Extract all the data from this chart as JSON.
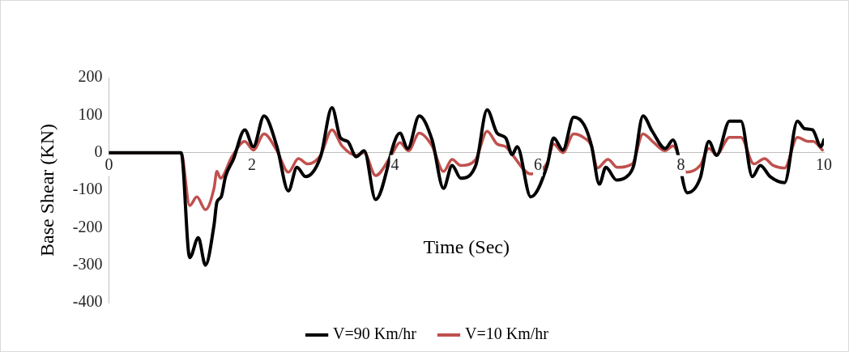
{
  "chart_data": {
    "type": "line",
    "xlabel": "Time (Sec)",
    "ylabel": "Base Shear (KN)",
    "xlim": [
      0,
      10
    ],
    "xticks": [
      0,
      2,
      4,
      6,
      8,
      10
    ],
    "ylim": [
      -400,
      200
    ],
    "yticks": [
      -400,
      -300,
      -200,
      -100,
      0,
      100,
      200
    ],
    "grid": false,
    "legend": "bottom",
    "marker": "none",
    "line_style": "solid",
    "series": [
      {
        "name": "V=90 Km/hr",
        "color": "#000000",
        "x": [
          0,
          1.01,
          1.13,
          1.25,
          1.35,
          1.47,
          1.51,
          1.57,
          1.63,
          1.74,
          1.9,
          2.02,
          2.17,
          2.35,
          2.51,
          2.63,
          2.75,
          2.96,
          3.12,
          3.24,
          3.34,
          3.46,
          3.57,
          3.73,
          4.07,
          4.18,
          4.34,
          4.52,
          4.68,
          4.8,
          4.92,
          5.13,
          5.29,
          5.43,
          5.55,
          5.64,
          5.71,
          5.9,
          6.13,
          6.22,
          6.35,
          6.5,
          6.65,
          6.75,
          6.86,
          6.95,
          7.1,
          7.26,
          7.34,
          7.47,
          7.6,
          7.78,
          7.89,
          8.09,
          8.27,
          8.39,
          8.5,
          8.68,
          8.84,
          9,
          9.11,
          9.25,
          9.45,
          9.63,
          9.73,
          9.84,
          9.96,
          10
        ],
        "values": [
          0,
          0,
          -280,
          -227,
          -300,
          -193,
          -132,
          -118,
          -64,
          -18,
          61,
          16,
          98,
          16,
          -102,
          -39,
          -64,
          -11,
          120,
          39,
          30,
          -11,
          5,
          -125,
          52,
          11,
          98,
          34,
          -95,
          -34,
          -68,
          -34,
          114,
          52,
          39,
          -5,
          16,
          -118,
          -34,
          39,
          7,
          95,
          73,
          18,
          -84,
          -39,
          -73,
          -61,
          -34,
          98,
          57,
          11,
          34,
          -107,
          -68,
          30,
          -7,
          84,
          84,
          -64,
          -34,
          -64,
          -80,
          84,
          64,
          61,
          16,
          34
        ]
      },
      {
        "name": "V=10 Km/hr",
        "color": "#c0504d",
        "x": [
          0,
          1.01,
          1.13,
          1.23,
          1.35,
          1.47,
          1.51,
          1.56,
          1.72,
          1.9,
          2.02,
          2.17,
          2.35,
          2.51,
          2.65,
          2.78,
          2.96,
          3.12,
          3.26,
          3.46,
          3.57,
          3.73,
          3.95,
          4.07,
          4.19,
          4.34,
          4.52,
          4.68,
          4.8,
          4.92,
          5.13,
          5.29,
          5.43,
          5.55,
          5.64,
          5.9,
          6.13,
          6.22,
          6.35,
          6.5,
          6.65,
          6.75,
          6.83,
          6.98,
          7.11,
          7.32,
          7.47,
          7.62,
          7.78,
          7.89,
          8.08,
          8.27,
          8.39,
          8.5,
          8.68,
          8.84,
          9.02,
          9.17,
          9.29,
          9.45,
          9.63,
          9.78,
          9.85,
          9.98
        ],
        "values": [
          0,
          0,
          -141,
          -118,
          -152,
          -95,
          -50,
          -68,
          -11,
          30,
          7,
          50,
          5,
          -52,
          -16,
          -30,
          -7,
          61,
          18,
          -7,
          0,
          -61,
          -7,
          27,
          5,
          52,
          18,
          -50,
          -18,
          -34,
          -18,
          57,
          23,
          16,
          -5,
          -57,
          -27,
          23,
          0,
          50,
          39,
          18,
          -41,
          -18,
          -39,
          -30,
          50,
          27,
          5,
          18,
          -52,
          -34,
          11,
          -5,
          41,
          41,
          -30,
          -16,
          -34,
          -41,
          41,
          30,
          30,
          7
        ]
      }
    ]
  }
}
